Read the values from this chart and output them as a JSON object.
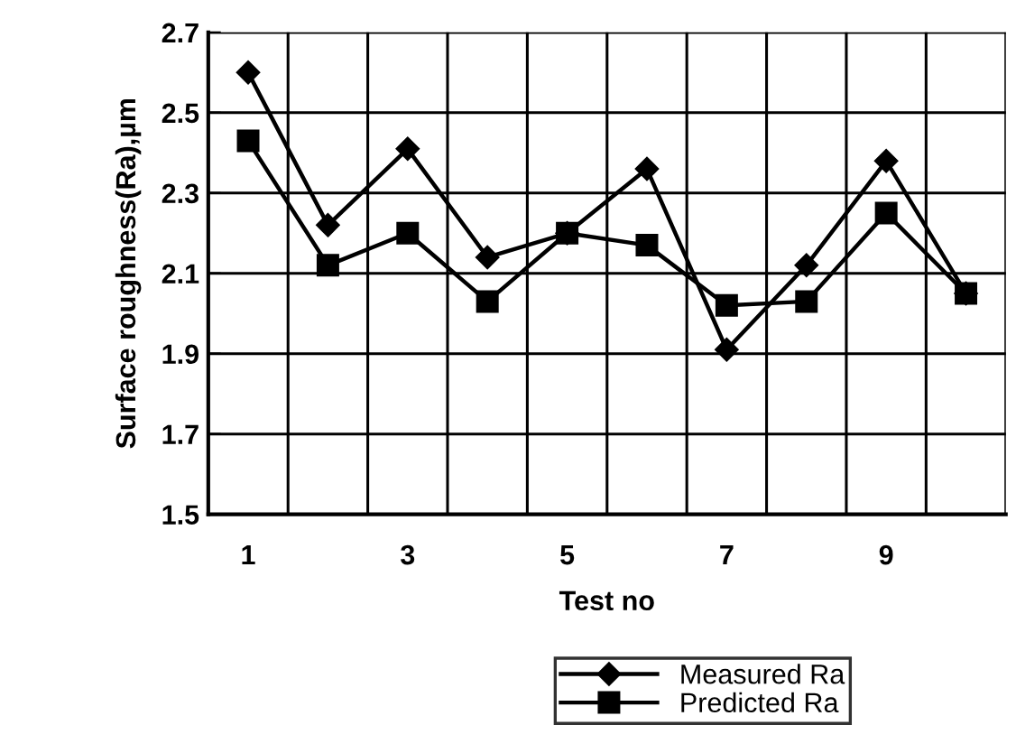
{
  "chart_data": {
    "type": "line",
    "xlabel": "Test no",
    "ylabel": "Surface roughness(Ra),µm",
    "categories": [
      "1",
      null,
      "3",
      null,
      "5",
      null,
      "7",
      null,
      "9",
      null
    ],
    "series": [
      {
        "name": "Measured Ra",
        "color": "#000000",
        "marker": "diamond",
        "values": [
          2.6,
          2.22,
          2.41,
          2.14,
          2.2,
          2.36,
          1.91,
          2.12,
          2.38,
          2.05
        ]
      },
      {
        "name": "Predicted Ra",
        "color": "#000000",
        "marker": "square",
        "values": [
          2.43,
          2.12,
          2.2,
          2.03,
          2.2,
          2.17,
          2.02,
          2.03,
          2.25,
          2.05
        ]
      }
    ],
    "ylim": [
      1.5,
      2.7
    ],
    "yticks": [
      1.5,
      1.7,
      1.9,
      2.1,
      2.3,
      2.5,
      2.7
    ],
    "grid": true,
    "legend": "bottom",
    "line_style": "solid"
  }
}
